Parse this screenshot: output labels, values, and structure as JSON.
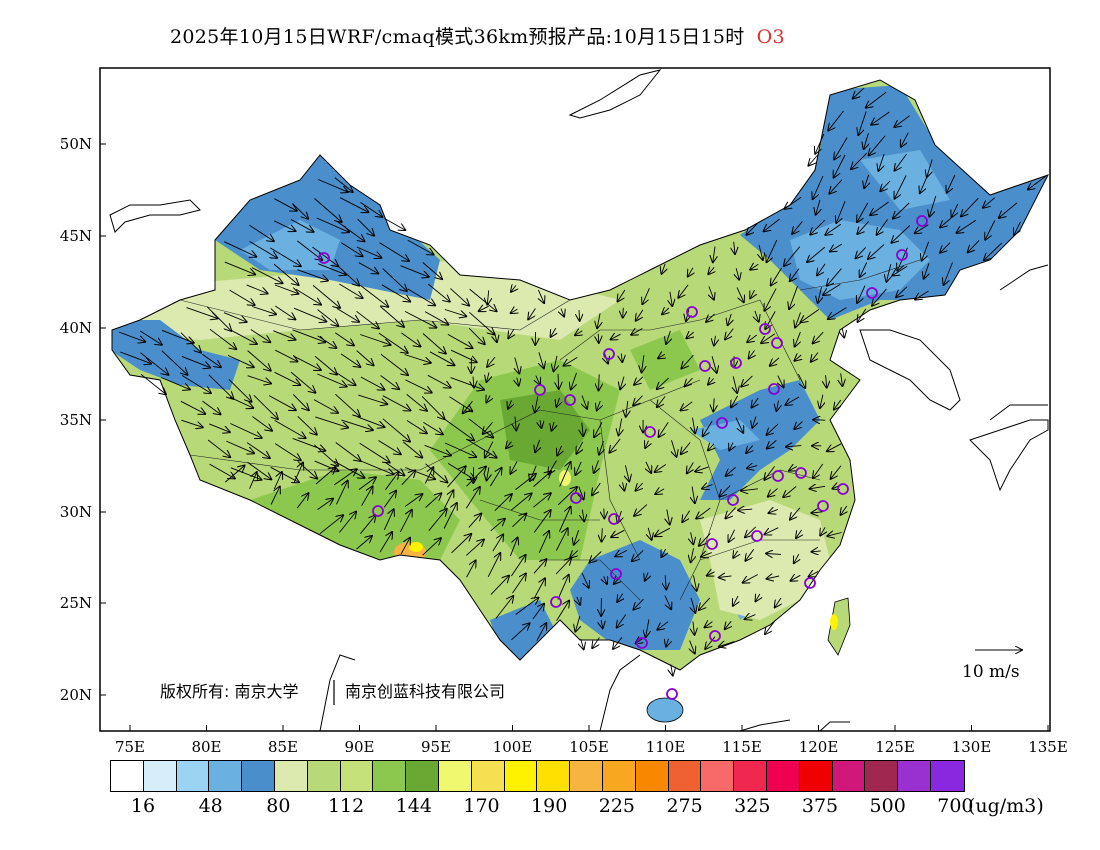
{
  "title": {
    "text": "2025年10月15日WRF/cmaq模式36km预报产品:10月15日15时",
    "species": "O3",
    "species_color": "#e03030"
  },
  "map": {
    "lat_labels": [
      "50N",
      "45N",
      "40N",
      "35N",
      "30N",
      "25N",
      "20N"
    ],
    "lon_labels": [
      "75E",
      "80E",
      "85E",
      "90E",
      "95E",
      "100E",
      "105E",
      "110E",
      "115E",
      "120E",
      "125E",
      "130E",
      "135E"
    ],
    "copyright": "版权所有: 南京大学",
    "company": "南京创蓝科技有限公司",
    "wind_reference": "10 m/s",
    "wind_reference_speed_ms": 10,
    "cities_marker": "circle",
    "cities_marker_color": "#8a00d4"
  },
  "legend": {
    "unit": "(ug/m3)",
    "colors": [
      "#ffffff",
      "#d6eef9",
      "#9bd4f2",
      "#6ab0e0",
      "#4a8fcc",
      "#dceab0",
      "#b7d978",
      "#c4e17a",
      "#8cc84e",
      "#6aa834",
      "#f0f870",
      "#f4e050",
      "#fff200",
      "#ffe000",
      "#f8b440",
      "#f8a820",
      "#f88800",
      "#f06030",
      "#f86a6a",
      "#f02850",
      "#f00050",
      "#f00000",
      "#d0187a",
      "#a02850",
      "#9b30d0",
      "#8a28e0"
    ],
    "tick_labels": [
      "16",
      "48",
      "80",
      "112",
      "144",
      "170",
      "190",
      "225",
      "275",
      "325",
      "375",
      "500",
      "700"
    ]
  }
}
